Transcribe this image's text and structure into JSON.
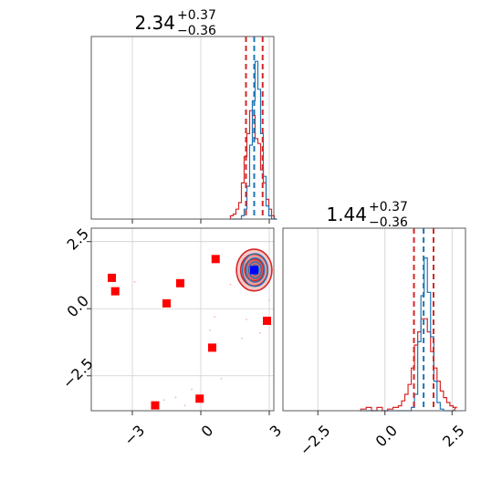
{
  "chart_data": {
    "type": "corner",
    "colors": {
      "blue": "#1f77b4",
      "red": "#d62728",
      "marker_red": "#ff0000",
      "marker_blue": "#0000ff",
      "grid": "#cfcfcf"
    },
    "params": [
      {
        "title": {
          "main": "2.34",
          "plus": "+0.37",
          "minus": "−0.36"
        },
        "range": [
          -4.8,
          3.2
        ],
        "ticks": [
          {
            "v": -3,
            "label": "−3"
          },
          {
            "v": 0,
            "label": "0"
          },
          {
            "v": 3,
            "label": "3"
          }
        ],
        "blue_lines": [
          2.34
        ],
        "red_lines": [
          1.98,
          2.71
        ],
        "hist_bins": [
          1.3,
          1.42,
          1.54,
          1.66,
          1.78,
          1.9,
          2.02,
          2.14,
          2.26,
          2.38,
          2.5,
          2.62,
          2.74,
          2.86,
          2.98,
          3.1,
          3.22
        ],
        "hist_blue": [
          0,
          0,
          0,
          0,
          0.02,
          0.06,
          0.2,
          0.45,
          0.72,
          0.96,
          0.79,
          0.52,
          0.26,
          0.08,
          0.02,
          0,
          0
        ],
        "hist_red": [
          0.02,
          0.03,
          0.06,
          0.1,
          0.22,
          0.38,
          0.52,
          0.66,
          0.63,
          0.49,
          0.46,
          0.3,
          0.22,
          0.12,
          0.06,
          0.02,
          0
        ]
      },
      {
        "title": {
          "main": "1.44",
          "plus": "+0.37",
          "minus": "−0.36"
        },
        "range": [
          -3.8,
          3.0
        ],
        "ticks": [
          {
            "v": -2.5,
            "label": "−2.5"
          },
          {
            "v": 0.0,
            "label": "0.0"
          },
          {
            "v": 2.5,
            "label": "2.5"
          }
        ],
        "blue_lines": [
          1.44
        ],
        "red_lines": [
          1.08,
          1.81
        ],
        "hist_bins": [
          -0.9,
          -0.7,
          -0.5,
          -0.3,
          -0.1,
          0.1,
          0.3,
          0.5,
          0.62,
          0.74,
          0.86,
          0.98,
          1.1,
          1.22,
          1.34,
          1.46,
          1.58,
          1.7,
          1.82,
          1.94,
          2.06,
          2.18,
          2.3,
          2.42,
          2.54
        ],
        "hist_blue": [
          0,
          0,
          0,
          0,
          0,
          0,
          0,
          0,
          0,
          0,
          0,
          0.02,
          0.1,
          0.42,
          0.7,
          0.93,
          0.72,
          0.45,
          0.18,
          0.05,
          0.01,
          0,
          0,
          0,
          0
        ],
        "hist_red": [
          0.01,
          0.02,
          0,
          0.02,
          0,
          0.01,
          0.02,
          0.03,
          0.06,
          0.1,
          0.16,
          0.26,
          0.4,
          0.48,
          0.56,
          0.56,
          0.48,
          0.36,
          0.26,
          0.18,
          0.12,
          0.08,
          0.05,
          0.03,
          0.02
        ]
      }
    ],
    "joint": {
      "center": [
        2.34,
        1.44
      ],
      "sigma": [
        0.37,
        0.37
      ],
      "red_markers": [
        [
          -3.9,
          1.15
        ],
        [
          -3.75,
          0.65
        ],
        [
          -0.9,
          0.95
        ],
        [
          -1.5,
          0.2
        ],
        [
          0.65,
          1.85
        ],
        [
          2.9,
          -0.45
        ],
        [
          0.5,
          -1.45
        ],
        [
          -2.0,
          -3.6
        ],
        [
          -0.05,
          -3.35
        ]
      ],
      "blue_marker": [
        2.34,
        1.44
      ],
      "faint_points": [
        [
          0.4,
          -0.8
        ],
        [
          1.8,
          -1.1
        ],
        [
          0.9,
          -2.6
        ],
        [
          -1.1,
          -3.3
        ],
        [
          -0.4,
          -3.0
        ],
        [
          -1.6,
          -3.4
        ],
        [
          0.2,
          -3.8
        ],
        [
          -0.7,
          -3.6
        ],
        [
          2.6,
          -0.9
        ],
        [
          0.6,
          -0.3
        ],
        [
          -2.9,
          1.0
        ],
        [
          3.0,
          0.3
        ],
        [
          1.3,
          0.9
        ],
        [
          2.0,
          -0.4
        ]
      ]
    }
  }
}
